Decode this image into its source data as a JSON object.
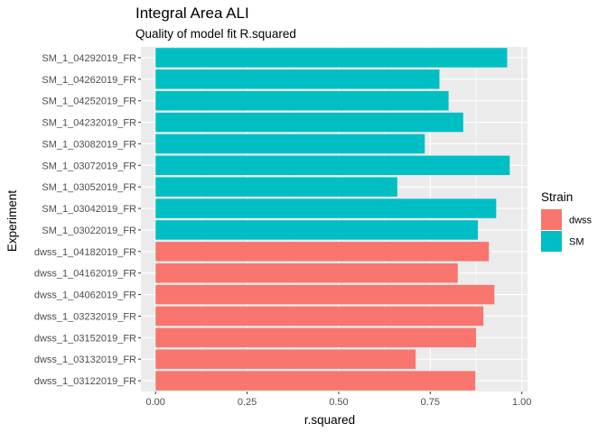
{
  "chart_data": {
    "type": "bar",
    "orientation": "horizontal",
    "title": "Integral Area ALI",
    "subtitle": "Quality of model fit R.squared",
    "xlabel": "r.squared",
    "ylabel": "Experiment",
    "xlim": [
      -0.04,
      1.0155
    ],
    "xticks": [
      0.0,
      0.25,
      0.5,
      0.75,
      1.0
    ],
    "xtick_labels": [
      "0.00",
      "0.25",
      "0.50",
      "0.75",
      "1.00"
    ],
    "grid": true,
    "legend": {
      "title": "Strain",
      "position": "right",
      "entries": [
        {
          "label": "dwss",
          "color": "#F8766D"
        },
        {
          "label": "SM",
          "color": "#00BFC4"
        }
      ]
    },
    "categories": [
      "SM_1_04292019_FR",
      "SM_1_04262019_FR",
      "SM_1_04252019_FR",
      "SM_1_04232019_FR",
      "SM_1_03082019_FR",
      "SM_1_03072019_FR",
      "SM_1_03052019_FR",
      "SM_1_03042019_FR",
      "SM_1_03022019_FR",
      "dwss_1_04182019_FR",
      "dwss_1_04162019_FR",
      "dwss_1_04062019_FR",
      "dwss_1_03232019_FR",
      "dwss_1_03152019_FR",
      "dwss_1_03132019_FR",
      "dwss_1_03122019_FR"
    ],
    "values": [
      0.96,
      0.775,
      0.8,
      0.84,
      0.735,
      0.967,
      0.66,
      0.93,
      0.88,
      0.91,
      0.825,
      0.925,
      0.895,
      0.875,
      0.71,
      0.873
    ],
    "strain": [
      "SM",
      "SM",
      "SM",
      "SM",
      "SM",
      "SM",
      "SM",
      "SM",
      "SM",
      "dwss",
      "dwss",
      "dwss",
      "dwss",
      "dwss",
      "dwss",
      "dwss"
    ]
  }
}
